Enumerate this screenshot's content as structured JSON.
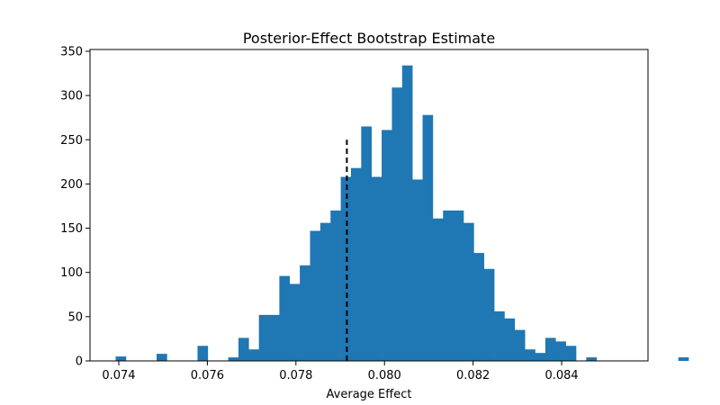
{
  "chart_data": {
    "type": "bar",
    "title": "Posterior-Effect Bootstrap Estimate",
    "xlabel": "Average Effect",
    "ylabel": "",
    "xlim": [
      0.07335,
      0.08595
    ],
    "ylim": [
      0,
      352
    ],
    "xticks": [
      0.074,
      0.076,
      0.078,
      0.08,
      0.082,
      0.084
    ],
    "xtick_labels": [
      "0.074",
      "0.076",
      "0.078",
      "0.080",
      "0.082",
      "0.084"
    ],
    "yticks": [
      0,
      50,
      100,
      150,
      200,
      250,
      300,
      350
    ],
    "ytick_labels": [
      "0",
      "50",
      "100",
      "150",
      "200",
      "250",
      "300",
      "350"
    ],
    "bin_start": 0.07393,
    "bin_width": 0.000231,
    "values": [
      5,
      0,
      0,
      0,
      8,
      0,
      0,
      0,
      17,
      0,
      0,
      4,
      26,
      13,
      52,
      52,
      96,
      87,
      108,
      147,
      156,
      170,
      208,
      218,
      265,
      208,
      261,
      309,
      334,
      205,
      278,
      161,
      170,
      170,
      156,
      122,
      104,
      56,
      48,
      35,
      13,
      9,
      26,
      22,
      17,
      0,
      4,
      0,
      0,
      0,
      0,
      0,
      0,
      0,
      0,
      4
    ],
    "bar_color": "#1f77b4",
    "reference_line": {
      "x": 0.07915,
      "y_top": 250,
      "color": "#000000",
      "style": "dashed"
    },
    "grid": false
  }
}
